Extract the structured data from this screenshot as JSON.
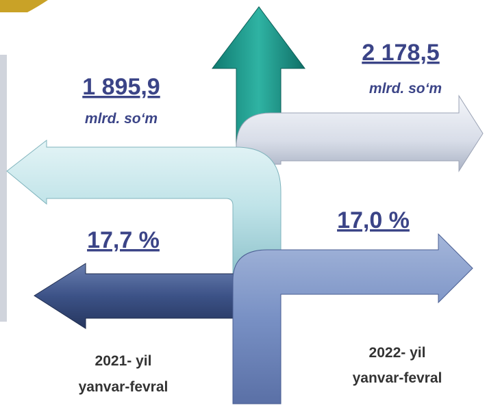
{
  "left": {
    "value": "1 895,9",
    "unit": "mlrd. so‘m",
    "share": "17,7 %",
    "period": [
      "2021- yil",
      "yanvar-fevral"
    ]
  },
  "right": {
    "value": "2 178,5",
    "unit": "mlrd. so‘m",
    "share": "17,0 %",
    "period": [
      "2022- yil",
      "yanvar-fevral"
    ]
  }
}
